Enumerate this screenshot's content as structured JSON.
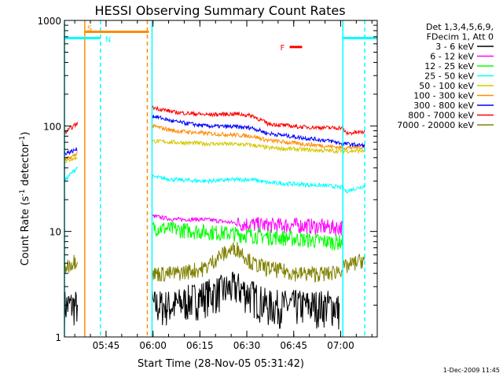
{
  "chart_data": {
    "type": "line",
    "title": "HESSI Observing Summary Count Rates",
    "xlabel": "Start Time (28-Nov-05 05:31:42)",
    "ylabel_main": "Count Rate (s",
    "ylabel_sup1": "-1",
    "ylabel_mid": " detector",
    "ylabel_sup2": "-1",
    "ylabel_end": ")",
    "yscale": "log",
    "ylim": [
      1,
      1000
    ],
    "xlim_minutes": [
      0,
      100
    ],
    "x_ticks": [
      {
        "label": "05:45",
        "min": 13.3
      },
      {
        "label": "06:00",
        "min": 28.3
      },
      {
        "label": "06:15",
        "min": 43.3
      },
      {
        "label": "06:30",
        "min": 58.3
      },
      {
        "label": "06:45",
        "min": 73.3
      },
      {
        "label": "07:00",
        "min": 88.3
      }
    ],
    "y_ticks": [
      {
        "label": "1",
        "v": 1
      },
      {
        "label": "10",
        "v": 10
      },
      {
        "label": "100",
        "v": 100
      },
      {
        "label": "1000",
        "v": 1000
      }
    ],
    "legend_header": [
      "Det 1,3,4,5,6,9,",
      "FDecim 1, Att 0"
    ],
    "series": [
      {
        "name": "3 - 6 keV",
        "color": "#000000",
        "x": [
          0,
          2,
          4,
          6,
          28,
          35,
          45,
          55,
          60,
          65,
          72,
          78,
          83,
          86,
          88
        ],
        "y": [
          2,
          2,
          2,
          2,
          2,
          2,
          2.5,
          3,
          2.5,
          2,
          2,
          2,
          2,
          2,
          1.8
        ]
      },
      {
        "name": "6 - 12 keV",
        "color": "#ff00ff",
        "x": [
          28,
          35,
          45,
          55,
          65,
          75,
          85,
          89
        ],
        "y": [
          14,
          13,
          13,
          12,
          11.5,
          11.5,
          11,
          11
        ]
      },
      {
        "name": "12 - 25 keV",
        "color": "#00ff00",
        "x": [
          28,
          35,
          45,
          55,
          65,
          75,
          85,
          89
        ],
        "y": [
          11,
          10.5,
          10,
          9.5,
          9,
          8.5,
          8,
          8
        ]
      },
      {
        "name": "25 - 50 keV",
        "color": "#00ffff",
        "x": [
          0,
          2,
          4,
          28,
          35,
          45,
          55,
          60,
          65,
          75,
          85,
          89,
          90,
          96
        ],
        "y": [
          30,
          35,
          40,
          33,
          31,
          30,
          31,
          31,
          29,
          28,
          27,
          26,
          24,
          27
        ]
      },
      {
        "name": "50 - 100 keV",
        "color": "#d4c800",
        "x": [
          0,
          2,
          4,
          28,
          35,
          45,
          55,
          60,
          65,
          75,
          85,
          89,
          96
        ],
        "y": [
          46,
          48,
          50,
          72,
          70,
          68,
          67,
          66,
          62,
          60,
          58,
          58,
          58
        ]
      },
      {
        "name": "100 - 300 keV",
        "color": "#ff8c00",
        "x": [
          0,
          2,
          4,
          28,
          35,
          45,
          55,
          60,
          65,
          75,
          85,
          89,
          96
        ],
        "y": [
          48,
          50,
          55,
          100,
          90,
          85,
          82,
          80,
          73,
          68,
          64,
          62,
          63
        ]
      },
      {
        "name": "300 - 800 keV",
        "color": "#0000ff",
        "x": [
          0,
          2,
          4,
          28,
          35,
          45,
          55,
          60,
          65,
          75,
          85,
          89,
          96
        ],
        "y": [
          55,
          57,
          60,
          125,
          110,
          100,
          98,
          96,
          85,
          78,
          72,
          68,
          65
        ]
      },
      {
        "name": "800 - 7000 keV",
        "color": "#ff0000",
        "x": [
          0,
          2,
          4,
          28,
          35,
          45,
          55,
          60,
          65,
          75,
          85,
          89,
          90,
          96
        ],
        "y": [
          85,
          95,
          105,
          150,
          135,
          128,
          130,
          125,
          105,
          98,
          96,
          96,
          85,
          88
        ]
      },
      {
        "name": "7000 - 20000 keV",
        "color": "#808000",
        "x": [
          0,
          2,
          4,
          28,
          35,
          45,
          50,
          55,
          60,
          65,
          75,
          85,
          89,
          96
        ],
        "y": [
          4.5,
          5,
          5.5,
          4,
          4,
          4.5,
          6,
          7,
          5,
          4.5,
          4,
          4,
          4.5,
          5.5
        ]
      }
    ],
    "flags": [
      {
        "label": "S",
        "color": "#ff8c00",
        "x_start": 6.5,
        "x_end": 27,
        "y": 780
      },
      {
        "label": "N",
        "color": "#00ffff",
        "x_start": 0,
        "x_end": 11.5,
        "y": 680
      },
      {
        "label": "N",
        "color": "#00ffff",
        "x_start": 89,
        "x_end": 100,
        "y": 680
      },
      {
        "label": "F",
        "color": "#ff0000",
        "x_start": 72,
        "x_end": 76,
        "y": 560
      }
    ],
    "vlines": [
      {
        "x": 6.5,
        "color": "#ff8c00",
        "style": "solid"
      },
      {
        "x": 11.5,
        "color": "#00ffff",
        "style": "dashed"
      },
      {
        "x": 26.5,
        "color": "#ff8c00",
        "style": "dashed"
      },
      {
        "x": 28,
        "color": "#00ffff",
        "style": "solid"
      },
      {
        "x": 89,
        "color": "#00ffff",
        "style": "solid"
      },
      {
        "x": 96,
        "color": "#00ffff",
        "style": "dashed"
      },
      {
        "x": 0,
        "color": "#00ffff",
        "style": "solid"
      }
    ],
    "grid": false,
    "legend_position": "right"
  },
  "footer_timestamp": "1-Dec-2009 11:45"
}
